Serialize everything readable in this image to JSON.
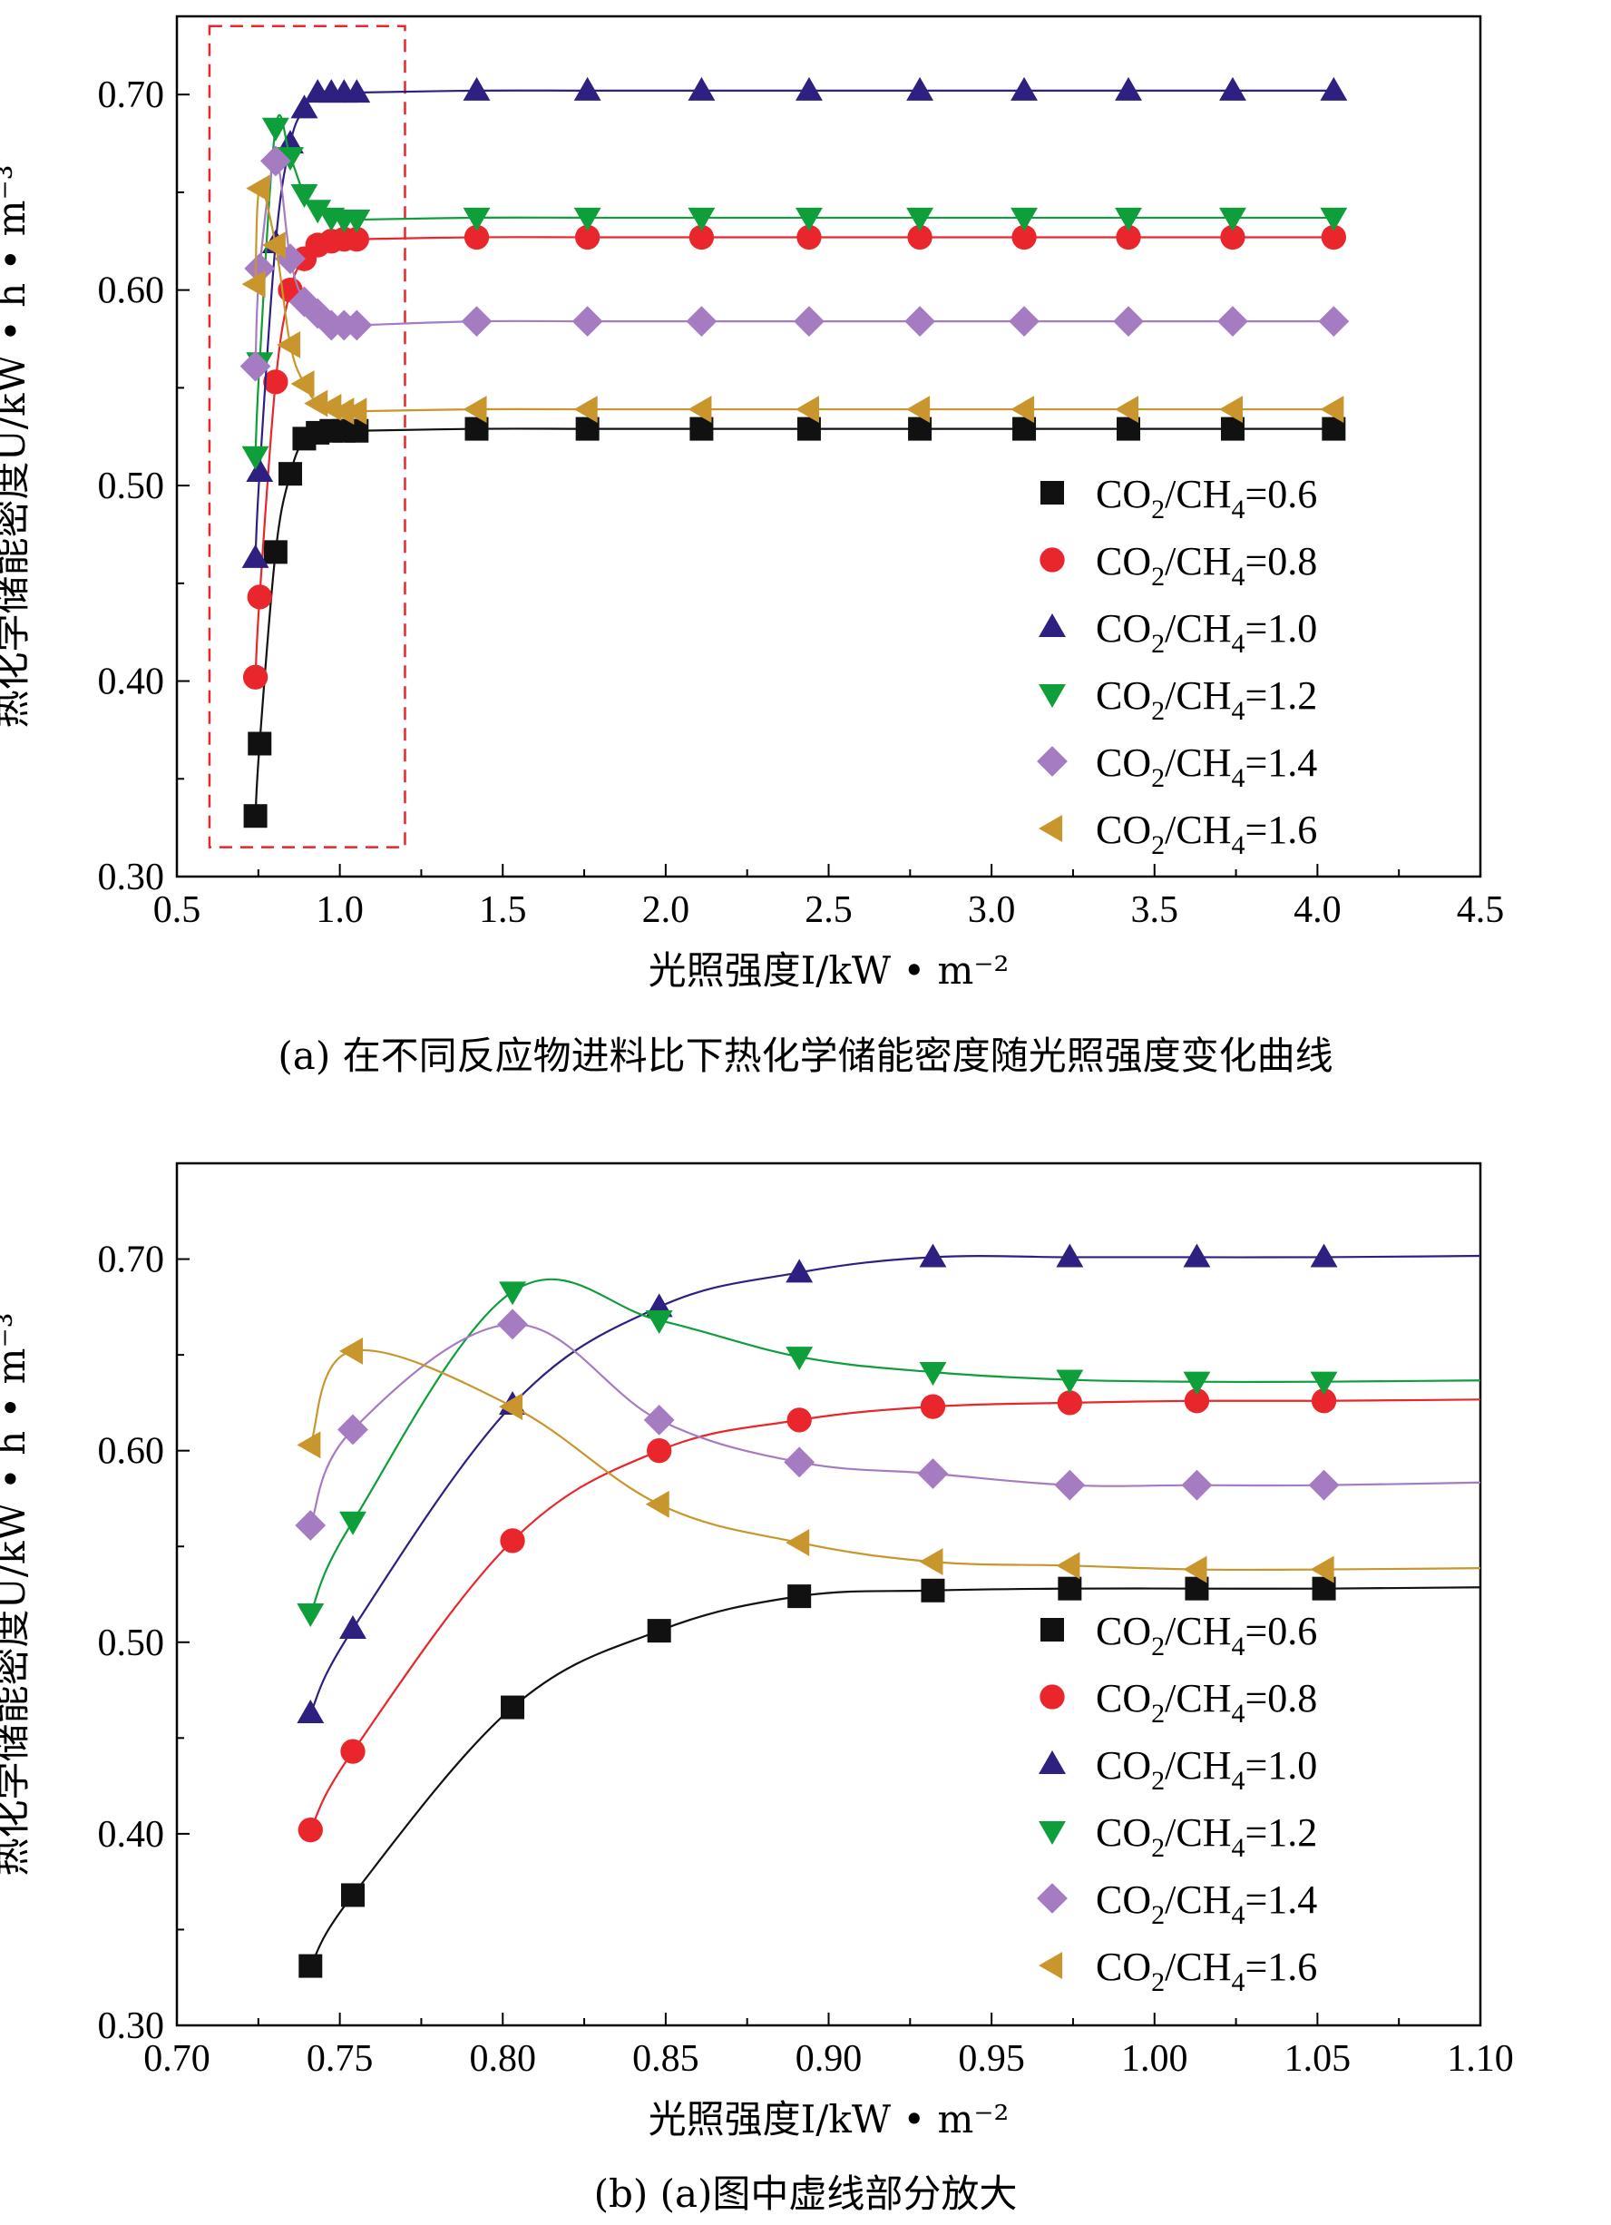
{
  "chart_data": [
    {
      "type": "line",
      "panel": "a",
      "caption": "(a) 在不同反应物进料比下热化学储能密度随光照强度变化曲线",
      "xlabel": "光照强度I/kW • m⁻²",
      "ylabel": "热化学储能密度U/kW • h • m⁻³",
      "xlim": [
        0.5,
        4.5
      ],
      "ylim": [
        0.3,
        0.74
      ],
      "xticks": [
        "0.5",
        "1.0",
        "1.5",
        "2.0",
        "2.5",
        "3.0",
        "3.5",
        "4.0",
        "4.5"
      ],
      "yticks": [
        "0.30",
        "0.40",
        "0.50",
        "0.60",
        "0.70"
      ],
      "highlight_box": {
        "x": [
          0.6,
          1.2
        ],
        "y": [
          0.315,
          0.735
        ]
      },
      "legend_position": "bottom-right",
      "series": [
        {
          "name": "CO2/CH4=0.6",
          "label_main": "CO",
          "label_sub1": "2",
          "label_mid": "/CH",
          "label_sub2": "4",
          "label_end": "=0.6",
          "color": "#111111",
          "marker": "square",
          "x": [
            0.741,
            0.754,
            0.803,
            0.848,
            0.891,
            0.932,
            0.974,
            1.013,
            1.052,
            1.42,
            1.76,
            2.11,
            2.44,
            2.78,
            3.1,
            3.42,
            3.74,
            4.05
          ],
          "y": [
            0.331,
            0.368,
            0.466,
            0.506,
            0.524,
            0.527,
            0.528,
            0.528,
            0.528,
            0.529,
            0.529,
            0.529,
            0.529,
            0.529,
            0.529,
            0.529,
            0.529,
            0.529
          ]
        },
        {
          "name": "CO2/CH4=0.8",
          "label_main": "CO",
          "label_sub1": "2",
          "label_mid": "/CH",
          "label_sub2": "4",
          "label_end": "=0.8",
          "color": "#e8262b",
          "marker": "circle",
          "x": [
            0.741,
            0.754,
            0.803,
            0.848,
            0.891,
            0.932,
            0.974,
            1.013,
            1.052,
            1.42,
            1.76,
            2.11,
            2.44,
            2.78,
            3.1,
            3.42,
            3.74,
            4.05
          ],
          "y": [
            0.402,
            0.443,
            0.553,
            0.6,
            0.616,
            0.623,
            0.625,
            0.626,
            0.626,
            0.627,
            0.627,
            0.627,
            0.627,
            0.627,
            0.627,
            0.627,
            0.627,
            0.627
          ]
        },
        {
          "name": "CO2/CH4=1.0",
          "label_main": "CO",
          "label_sub1": "2",
          "label_mid": "/CH",
          "label_sub2": "4",
          "label_end": "=1.0",
          "color": "#2e2080",
          "marker": "triangle-up",
          "x": [
            0.741,
            0.754,
            0.803,
            0.848,
            0.891,
            0.932,
            0.974,
            1.013,
            1.052,
            1.42,
            1.76,
            2.11,
            2.44,
            2.78,
            3.1,
            3.42,
            3.74,
            4.05
          ],
          "y": [
            0.463,
            0.507,
            0.624,
            0.675,
            0.693,
            0.701,
            0.701,
            0.701,
            0.701,
            0.702,
            0.702,
            0.702,
            0.702,
            0.702,
            0.702,
            0.702,
            0.702,
            0.702
          ]
        },
        {
          "name": "CO2/CH4=1.2",
          "label_main": "CO",
          "label_sub1": "2",
          "label_mid": "/CH",
          "label_sub2": "4",
          "label_end": "=1.2",
          "color": "#0e9e3a",
          "marker": "triangle-down",
          "x": [
            0.741,
            0.754,
            0.803,
            0.848,
            0.891,
            0.932,
            0.974,
            1.013,
            1.052,
            1.42,
            1.76,
            2.11,
            2.44,
            2.78,
            3.1,
            3.42,
            3.74,
            4.05
          ],
          "y": [
            0.515,
            0.563,
            0.683,
            0.668,
            0.649,
            0.641,
            0.637,
            0.636,
            0.636,
            0.637,
            0.637,
            0.637,
            0.637,
            0.637,
            0.637,
            0.637,
            0.637,
            0.637
          ]
        },
        {
          "name": "CO2/CH4=1.4",
          "label_main": "CO",
          "label_sub1": "2",
          "label_mid": "/CH",
          "label_sub2": "4",
          "label_end": "=1.4",
          "color": "#a57cc1",
          "marker": "diamond",
          "x": [
            0.741,
            0.754,
            0.803,
            0.848,
            0.891,
            0.932,
            0.974,
            1.013,
            1.052,
            1.42,
            1.76,
            2.11,
            2.44,
            2.78,
            3.1,
            3.42,
            3.74,
            4.05
          ],
          "y": [
            0.561,
            0.611,
            0.666,
            0.616,
            0.594,
            0.588,
            0.582,
            0.582,
            0.582,
            0.584,
            0.584,
            0.584,
            0.584,
            0.584,
            0.584,
            0.584,
            0.584,
            0.584
          ]
        },
        {
          "name": "CO2/CH4=1.6",
          "label_main": "CO",
          "label_sub1": "2",
          "label_mid": "/CH",
          "label_sub2": "4",
          "label_end": "=1.6",
          "color": "#c9962d",
          "marker": "triangle-left",
          "x": [
            0.741,
            0.754,
            0.803,
            0.848,
            0.891,
            0.932,
            0.974,
            1.013,
            1.052,
            1.42,
            1.76,
            2.11,
            2.44,
            2.78,
            3.1,
            3.42,
            3.74,
            4.05
          ],
          "y": [
            0.603,
            0.652,
            0.623,
            0.572,
            0.552,
            0.542,
            0.54,
            0.538,
            0.538,
            0.539,
            0.539,
            0.539,
            0.539,
            0.539,
            0.539,
            0.539,
            0.539,
            0.539
          ]
        }
      ]
    },
    {
      "type": "line",
      "panel": "b",
      "caption": "(b) (a)图中虚线部分放大",
      "xlabel": "光照强度I/kW • m⁻²",
      "ylabel": "热化学储能密度U/kW • h • m⁻³",
      "xlim": [
        0.7,
        1.1
      ],
      "ylim": [
        0.3,
        0.75
      ],
      "xticks": [
        "0.70",
        "0.75",
        "0.80",
        "0.85",
        "0.90",
        "0.95",
        "1.00",
        "1.05",
        "1.10"
      ],
      "yticks": [
        "0.30",
        "0.40",
        "0.50",
        "0.60",
        "0.70"
      ],
      "legend_position": "bottom-right",
      "series_ref": "same data as panel a, x range 0.70–1.10 (curves continue to right edge)"
    }
  ]
}
